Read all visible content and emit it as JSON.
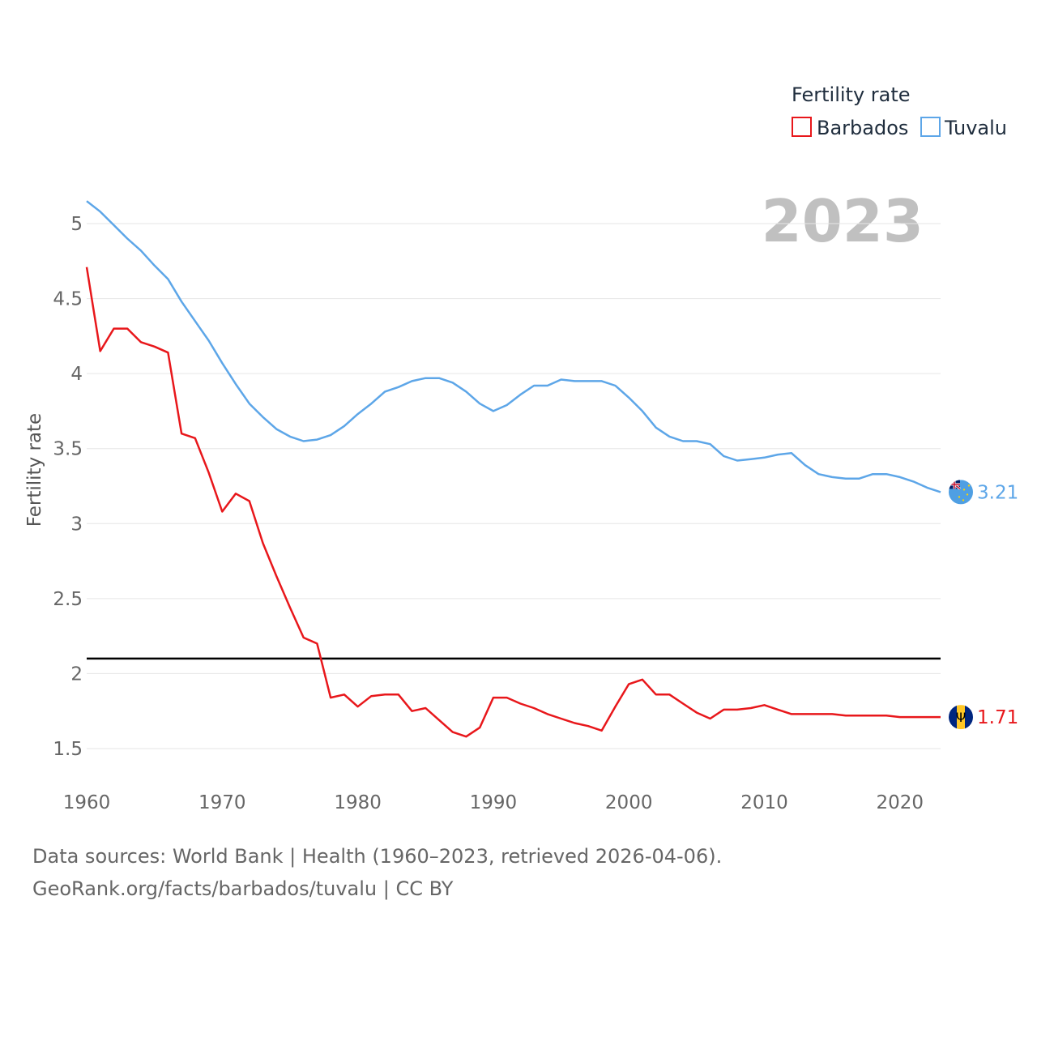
{
  "chart_data": {
    "type": "line",
    "legend_title": "Fertility rate",
    "ylabel": "Fertility rate",
    "year_label": "2023",
    "xlim": [
      1960,
      2023
    ],
    "ylim": [
      1.25,
      5.25
    ],
    "x_ticks": [
      1960,
      1970,
      1980,
      1990,
      2000,
      2010,
      2020
    ],
    "y_ticks": [
      1.5,
      2,
      2.5,
      3,
      3.5,
      4,
      4.5,
      5
    ],
    "reference_line": 2.1,
    "x": [
      1960,
      1961,
      1962,
      1963,
      1964,
      1965,
      1966,
      1967,
      1968,
      1969,
      1970,
      1971,
      1972,
      1973,
      1974,
      1975,
      1976,
      1977,
      1978,
      1979,
      1980,
      1981,
      1982,
      1983,
      1984,
      1985,
      1986,
      1987,
      1988,
      1989,
      1990,
      1991,
      1992,
      1993,
      1994,
      1995,
      1996,
      1997,
      1998,
      1999,
      2000,
      2001,
      2002,
      2003,
      2004,
      2005,
      2006,
      2007,
      2008,
      2009,
      2010,
      2011,
      2012,
      2013,
      2014,
      2015,
      2016,
      2017,
      2018,
      2019,
      2020,
      2021,
      2022,
      2023
    ],
    "series": [
      {
        "name": "Barbados",
        "color": "#e8171b",
        "end_label": "1.71",
        "values": [
          4.71,
          4.15,
          4.3,
          4.3,
          4.21,
          4.18,
          4.14,
          3.6,
          3.57,
          3.34,
          3.08,
          3.2,
          3.15,
          2.87,
          2.65,
          2.44,
          2.24,
          2.2,
          1.84,
          1.86,
          1.78,
          1.85,
          1.86,
          1.86,
          1.75,
          1.77,
          1.69,
          1.61,
          1.58,
          1.64,
          1.84,
          1.84,
          1.8,
          1.77,
          1.73,
          1.7,
          1.67,
          1.65,
          1.62,
          1.78,
          1.93,
          1.96,
          1.86,
          1.86,
          1.8,
          1.74,
          1.7,
          1.76,
          1.76,
          1.77,
          1.79,
          1.76,
          1.73,
          1.73,
          1.73,
          1.73,
          1.72,
          1.72,
          1.72,
          1.72,
          1.71,
          1.71,
          1.71,
          1.71
        ]
      },
      {
        "name": "Tuvalu",
        "color": "#5da6e8",
        "end_label": "3.21",
        "values": [
          5.15,
          5.08,
          4.99,
          4.9,
          4.82,
          4.72,
          4.63,
          4.48,
          4.35,
          4.22,
          4.07,
          3.93,
          3.8,
          3.71,
          3.63,
          3.58,
          3.55,
          3.56,
          3.59,
          3.65,
          3.73,
          3.8,
          3.88,
          3.91,
          3.95,
          3.97,
          3.97,
          3.94,
          3.88,
          3.8,
          3.75,
          3.79,
          3.86,
          3.92,
          3.92,
          3.96,
          3.95,
          3.95,
          3.95,
          3.92,
          3.84,
          3.75,
          3.64,
          3.58,
          3.55,
          3.55,
          3.53,
          3.45,
          3.42,
          3.43,
          3.44,
          3.46,
          3.47,
          3.39,
          3.33,
          3.31,
          3.3,
          3.3,
          3.33,
          3.33,
          3.31,
          3.28,
          3.24,
          3.21
        ]
      }
    ]
  },
  "footer": {
    "line1": "Data sources: World Bank | Health (1960–2023, retrieved 2026-04-06).",
    "line2": "GeoRank.org/facts/barbados/tuvalu | CC BY"
  }
}
